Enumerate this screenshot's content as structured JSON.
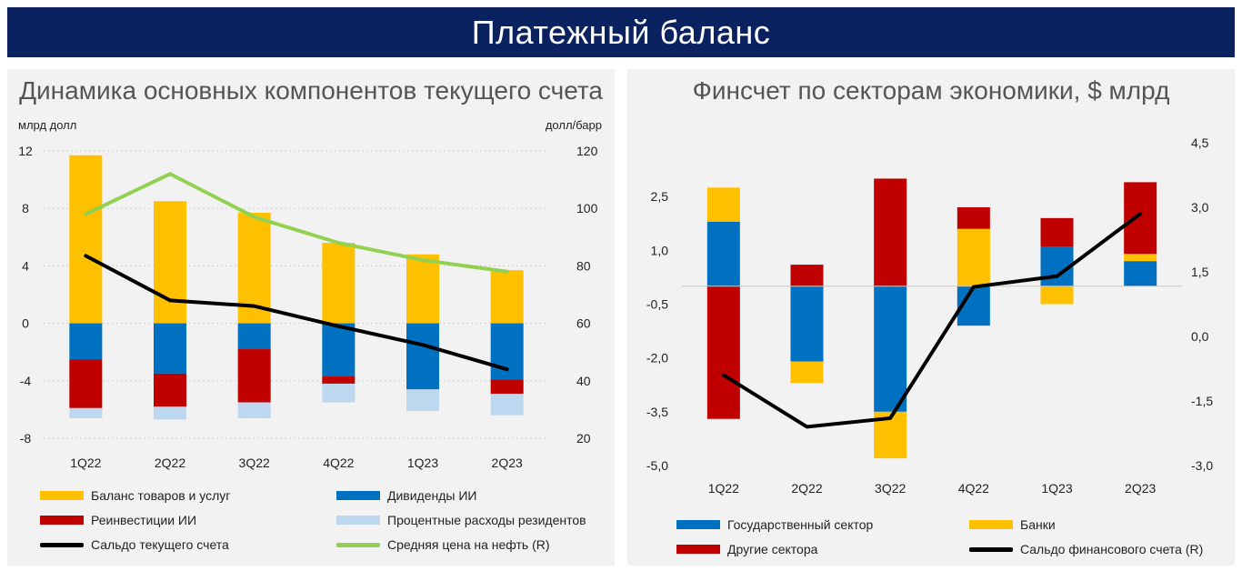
{
  "header": {
    "title": "Платежный баланс"
  },
  "left": {
    "title": "Динамика основных компонентов текущего счета",
    "left_unit": "млрд долл",
    "right_unit": "долл/барр",
    "legend": {
      "goods": "Баланс товаров и услуг",
      "dividends": "Дивиденды ИИ",
      "reinvest": "Реинвестиции ИИ",
      "interest": "Процентные расходы резидентов",
      "balance": "Сальдо текущего счета",
      "oil": "Средняя цена на нефть (R)"
    }
  },
  "right": {
    "title": "Финсчет по секторам экономики, $ млрд",
    "legend": {
      "gov": "Государственный сектор",
      "banks": "Банки",
      "other": "Другие сектора",
      "balance": "Сальдо финансового счета (R)"
    }
  },
  "chart_data": [
    {
      "type": "bar",
      "stacked": true,
      "categories": [
        "1Q22",
        "2Q22",
        "3Q22",
        "4Q22",
        "1Q23",
        "2Q23"
      ],
      "ylim": [
        -8,
        12
      ],
      "yticks": [
        "12",
        "8",
        "4",
        "0",
        "-4",
        "-8"
      ],
      "y2lim": [
        20,
        120
      ],
      "y2ticks": [
        "120",
        "100",
        "80",
        "60",
        "40",
        "20"
      ],
      "grid": true,
      "series": [
        {
          "name": "Баланс товаров и услуг",
          "color": "#ffc000",
          "values": [
            11.7,
            8.5,
            7.7,
            5.6,
            4.8,
            3.7
          ]
        },
        {
          "name": "Дивиденды ИИ",
          "color": "#0070c0",
          "values": [
            -2.5,
            -3.5,
            -1.8,
            -3.7,
            -4.6,
            -3.9
          ]
        },
        {
          "name": "Реинвестиции ИИ",
          "color": "#c00000",
          "values": [
            -3.4,
            -2.3,
            -3.7,
            -0.5,
            0,
            -1.0
          ]
        },
        {
          "name": "Процентные расходы резидентов",
          "color": "#bdd7ee",
          "values": [
            -0.7,
            -0.9,
            -1.1,
            -1.3,
            -1.5,
            -1.5
          ]
        }
      ],
      "lines": [
        {
          "name": "Сальдо текущего счета",
          "color": "#000000",
          "axis": "left",
          "values": [
            4.7,
            1.6,
            1.2,
            -0.2,
            -1.5,
            -3.2
          ]
        },
        {
          "name": "Средняя цена на нефть (R)",
          "color": "#92d050",
          "axis": "right",
          "values": [
            98,
            112,
            97,
            88,
            82,
            78
          ]
        }
      ]
    },
    {
      "type": "bar",
      "stacked": true,
      "categories": [
        "1Q22",
        "2Q22",
        "3Q22",
        "4Q22",
        "1Q23",
        "2Q23"
      ],
      "ylim": [
        -5.0,
        4.0
      ],
      "yticks": [
        "2,5",
        "1,0",
        "-0,5",
        "-2,0",
        "-3,5",
        "-5,0"
      ],
      "ytick_values": [
        2.5,
        1.0,
        -0.5,
        -2.0,
        -3.5,
        -5.0
      ],
      "y2lim": [
        -3.0,
        4.5
      ],
      "y2ticks": [
        "4,5",
        "3,0",
        "1,5",
        "0,0",
        "-1,5",
        "-3,0"
      ],
      "y2tick_values": [
        4.5,
        3.0,
        1.5,
        0.0,
        -1.5,
        -3.0
      ],
      "grid": false,
      "series": [
        {
          "name": "Государственный сектор",
          "color": "#0070c0",
          "values": [
            1.8,
            -2.1,
            -3.5,
            -1.1,
            1.1,
            0.7
          ]
        },
        {
          "name": "Банки",
          "color": "#ffc000",
          "values": [
            0.95,
            -0.6,
            -1.3,
            1.6,
            -0.5,
            0.2
          ]
        },
        {
          "name": "Другие сектора",
          "color": "#c00000",
          "values": [
            -3.7,
            0.6,
            3.0,
            0.6,
            0.8,
            2.0
          ]
        }
      ],
      "lines": [
        {
          "name": "Сальдо финансового счета (R)",
          "color": "#000000",
          "axis": "right",
          "values": [
            -0.9,
            -2.1,
            -1.9,
            1.15,
            1.4,
            2.85
          ]
        }
      ]
    }
  ]
}
